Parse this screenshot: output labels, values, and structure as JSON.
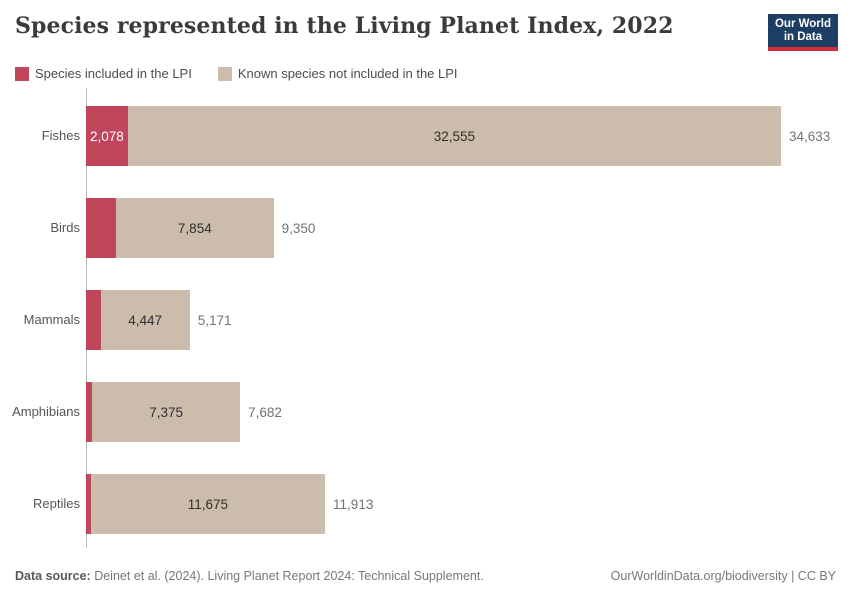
{
  "header": {
    "title": "Species represented in the Living Planet Index, 2022",
    "logo_line1": "Our World",
    "logo_line2": "in Data"
  },
  "legend": [
    {
      "label": "Species included in the LPI",
      "color": "#c0465b"
    },
    {
      "label": "Known species not included in the LPI",
      "color": "#ccbcab"
    }
  ],
  "chart_data": {
    "type": "bar",
    "orientation": "horizontal",
    "stacked": true,
    "title": "Species represented in the Living Planet Index, 2022",
    "categories": [
      "Fishes",
      "Birds",
      "Mammals",
      "Amphibians",
      "Reptiles"
    ],
    "series": [
      {
        "name": "Species included in the LPI",
        "color": "#c0465b",
        "values": [
          2078,
          1496,
          724,
          307,
          238
        ]
      },
      {
        "name": "Known species not included in the LPI",
        "color": "#ccbcab",
        "values": [
          32555,
          7854,
          4447,
          7375,
          11675
        ]
      }
    ],
    "totals": [
      34633,
      9350,
      5171,
      7682,
      11913
    ],
    "xlim": [
      0,
      34633
    ],
    "grid": false,
    "legend_position": "top",
    "value_labels": {
      "included_shown": [
        "2,078",
        "",
        "",
        "",
        ""
      ],
      "not_included": [
        "32,555",
        "7,854",
        "4,447",
        "7,375",
        "11,675"
      ],
      "totals": [
        "34,633",
        "9,350",
        "5,171",
        "7,682",
        "11,913"
      ]
    }
  },
  "footer": {
    "source_label": "Data source:",
    "source_text": " Deinet et al. (2024). Living Planet Report 2024: Technical Supplement.",
    "rights": "OurWorldinData.org/biodiversity | CC BY"
  }
}
